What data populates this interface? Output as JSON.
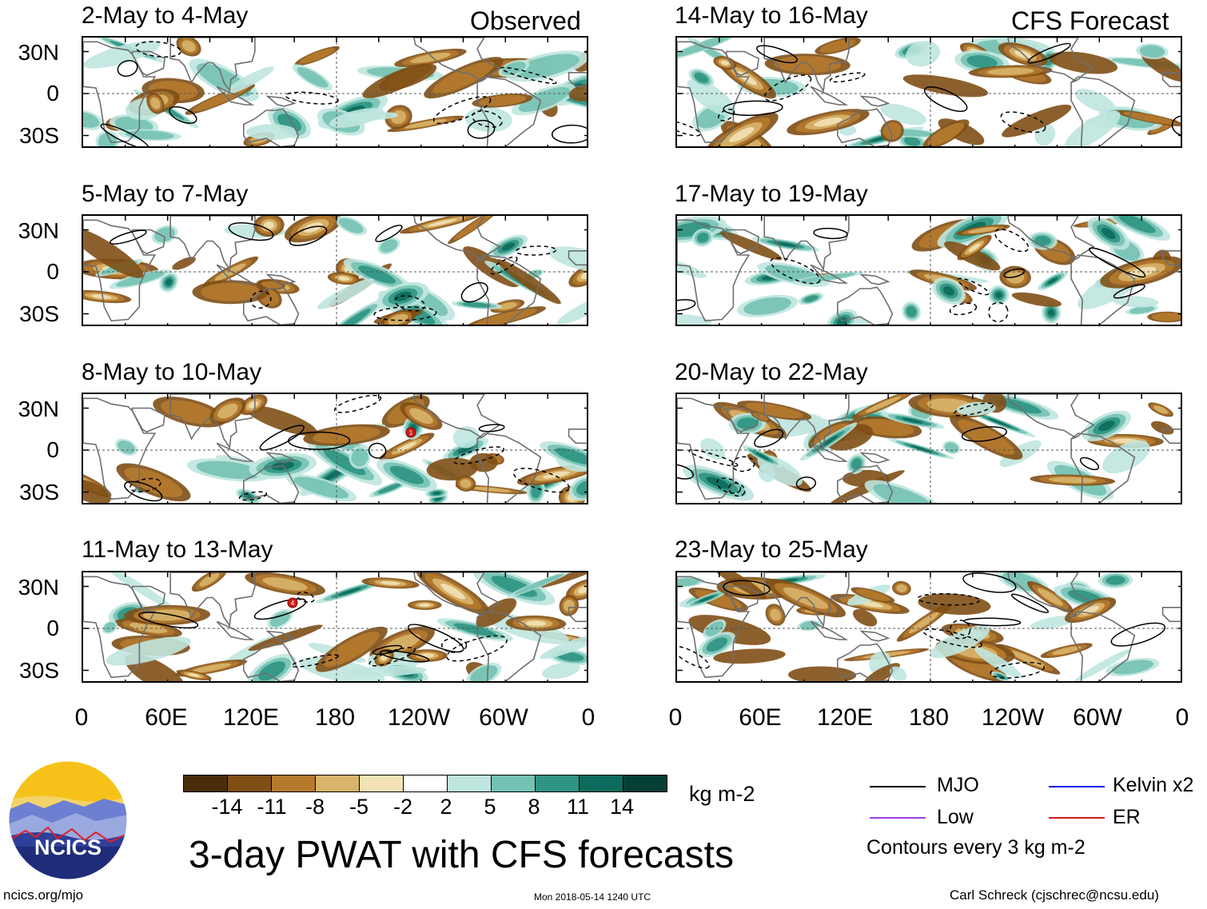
{
  "columns": {
    "left_tag": "Observed",
    "right_tag": "CFS Forecast"
  },
  "panels": [
    {
      "title": "2-May to 4-May"
    },
    {
      "title": "5-May to 7-May"
    },
    {
      "title": "8-May to 10-May"
    },
    {
      "title": "11-May to 13-May"
    },
    {
      "title": "14-May to 16-May"
    },
    {
      "title": "17-May to 19-May"
    },
    {
      "title": "20-May to 22-May"
    },
    {
      "title": "23-May to 25-May"
    }
  ],
  "axes": {
    "lat_ticks": [
      "30N",
      "0",
      "30S"
    ],
    "lon_ticks": [
      "0",
      "60E",
      "120E",
      "180",
      "120W",
      "60W",
      "0"
    ]
  },
  "storm_markers": [
    {
      "panel": "8-May to 10-May",
      "label": "1"
    },
    {
      "panel": "11-May to 13-May",
      "label": "4"
    }
  ],
  "colorbar": {
    "tick_labels": [
      "-14",
      "-11",
      "-8",
      "-5",
      "-2",
      "2",
      "5",
      "8",
      "11",
      "14"
    ],
    "colors": [
      "#4a2d08",
      "#7f4f16",
      "#b57a2e",
      "#d8b46a",
      "#f2e2b6",
      "#ffffff",
      "#bfe6df",
      "#74c2b3",
      "#2f9483",
      "#0c6b5c",
      "#063f35"
    ],
    "units": "kg m-2"
  },
  "title": "3-day PWAT with CFS forecasts",
  "legend": {
    "items": [
      {
        "label": "MJO",
        "color": "#000000"
      },
      {
        "label": "Kelvin x2",
        "color": "#1a1adb"
      },
      {
        "label": "Low",
        "color": "#a142e0"
      },
      {
        "label": "ER",
        "color": "#d41a1a"
      }
    ],
    "note": "Contours every 3 kg m-2"
  },
  "logo": {
    "text": "NCICS"
  },
  "footer": {
    "left": "ncics.org/mjo",
    "center": "Mon 2018-05-14 1240 UTC",
    "right": "Carl Schreck (cjschrec@ncsu.edu)"
  }
}
